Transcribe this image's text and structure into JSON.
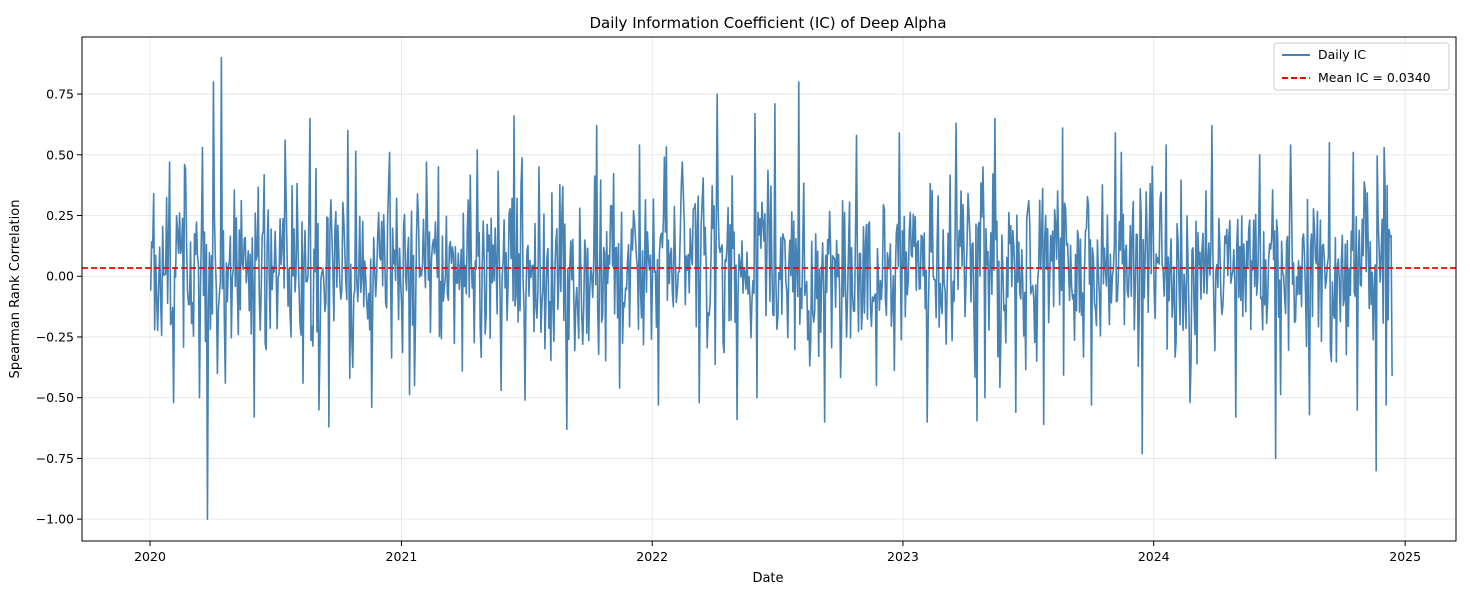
{
  "chart_data": {
    "type": "line",
    "title": "Daily Information Coefficient (IC) of Deep Alpha",
    "xlabel": "Date",
    "ylabel": "Spearman Rank Correlation",
    "x_range": [
      "2019-09-24",
      "2025-03-16"
    ],
    "ylim": [
      -1.09,
      0.985
    ],
    "x_ticks": [
      "2020-01-01",
      "2021-01-01",
      "2022-01-01",
      "2023-01-01",
      "2024-01-01",
      "2025-01-01"
    ],
    "x_tick_labels": [
      "2020",
      "2021",
      "2022",
      "2023",
      "2024",
      "2025"
    ],
    "y_ticks": [
      -1.0,
      -0.75,
      -0.5,
      -0.25,
      0.0,
      0.25,
      0.5,
      0.75
    ],
    "y_tick_labels": [
      "−1.00",
      "−0.75",
      "−0.50",
      "−0.25",
      "0.00",
      "0.25",
      "0.50",
      "0.75"
    ],
    "grid": true,
    "legend_position": "top-right",
    "series": [
      {
        "name": "Daily IC",
        "color": "#4682b4",
        "style": "solid",
        "start_date": "2020-01-02",
        "end_date": "2024-12-13",
        "n_points": 1248,
        "x": [
          "2020-01-02",
          "2020-01-06",
          "2020-01-08",
          "2020-01-15",
          "2020-01-29",
          "2020-02-05",
          "2020-02-20",
          "2020-03-13",
          "2020-03-17",
          "2020-03-25",
          "2020-04-03",
          "2020-04-08",
          "2020-04-14",
          "2020-04-20",
          "2020-05-06",
          "2020-06-01",
          "2020-07-15",
          "2020-08-10",
          "2020-08-21",
          "2020-09-03",
          "2020-09-17",
          "2020-10-15",
          "2020-11-18",
          "2020-12-15",
          "2021-01-20",
          "2021-02-24",
          "2021-03-31",
          "2021-04-22",
          "2021-05-26",
          "2021-06-14",
          "2021-06-30",
          "2021-07-20",
          "2021-08-30",
          "2021-10-12",
          "2021-11-15",
          "2021-12-13",
          "2022-01-10",
          "2022-02-14",
          "2022-03-11",
          "2022-04-05",
          "2022-05-05",
          "2022-05-31",
          "2022-06-03",
          "2022-06-28",
          "2022-08-03",
          "2022-09-09",
          "2022-10-25",
          "2022-11-24",
          "2022-12-27",
          "2023-02-06",
          "2023-03-20",
          "2023-05-01",
          "2023-05-15",
          "2023-06-14",
          "2023-07-25",
          "2023-08-22",
          "2023-10-02",
          "2023-11-06",
          "2023-11-15",
          "2023-12-15",
          "2024-01-19",
          "2024-02-23",
          "2024-03-26",
          "2024-04-29",
          "2024-06-03",
          "2024-06-27",
          "2024-07-18",
          "2024-08-15",
          "2024-09-12",
          "2024-10-18",
          "2024-11-20",
          "2024-12-02",
          "2024-12-05",
          "2024-12-13"
        ],
        "y": [
          -0.06,
          0.34,
          -0.22,
          0.12,
          0.47,
          -0.52,
          0.46,
          -0.5,
          0.53,
          -1.0,
          0.8,
          -0.4,
          0.9,
          -0.44,
          0.24,
          -0.58,
          0.56,
          -0.44,
          0.65,
          -0.55,
          -0.62,
          0.6,
          -0.54,
          0.51,
          -0.45,
          0.45,
          -0.39,
          0.52,
          -0.47,
          0.66,
          -0.51,
          0.45,
          -0.63,
          0.62,
          -0.46,
          0.54,
          -0.53,
          0.47,
          -0.52,
          0.75,
          -0.59,
          0.67,
          -0.5,
          0.71,
          0.8,
          -0.6,
          0.58,
          -0.45,
          0.59,
          -0.6,
          0.63,
          -0.5,
          0.65,
          -0.56,
          -0.61,
          0.61,
          -0.53,
          0.59,
          0.51,
          -0.73,
          0.54,
          -0.52,
          0.62,
          -0.58,
          0.5,
          -0.75,
          0.54,
          -0.57,
          0.55,
          0.51,
          -0.8,
          0.53,
          -0.53,
          -0.41
        ],
        "mean": 0.034
      },
      {
        "name": "Mean IC = 0.0340",
        "color": "#ff0000",
        "style": "dashed",
        "value": 0.034
      }
    ]
  }
}
